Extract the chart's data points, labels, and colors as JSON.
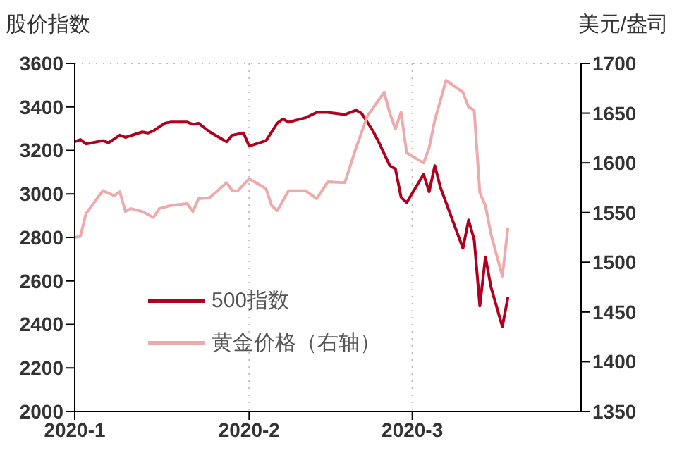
{
  "chart_data": {
    "type": "line",
    "ylabel": "股价指数",
    "y2label": "美元/盎司",
    "xlim": [
      "2020-01-01",
      "2020-03-31"
    ],
    "xticks": [
      {
        "value": "2020-01-01",
        "label": "2020-1"
      },
      {
        "value": "2020-02-01",
        "label": "2020-2"
      },
      {
        "value": "2020-03-01",
        "label": "2020-3"
      }
    ],
    "ylim": [
      2000,
      3600
    ],
    "yticks": [
      2000,
      2200,
      2400,
      2600,
      2800,
      3000,
      3200,
      3400,
      3600
    ],
    "y2lim": [
      1350,
      1700
    ],
    "y2ticks": [
      1350,
      1400,
      1450,
      1500,
      1550,
      1600,
      1650,
      1700
    ],
    "grid": true,
    "legend": "bottom left",
    "marker": "none",
    "line_style": "solid",
    "series": [
      {
        "name": "500指数",
        "color": "#b0001e",
        "x": [
          "2020-01-01",
          "2020-01-02",
          "2020-01-03",
          "2020-01-06",
          "2020-01-07",
          "2020-01-09",
          "2020-01-10",
          "2020-01-13",
          "2020-01-14",
          "2020-01-15",
          "2020-01-17",
          "2020-01-18",
          "2020-01-21",
          "2020-01-22",
          "2020-01-23",
          "2020-01-25",
          "2020-01-28",
          "2020-01-29",
          "2020-01-31",
          "2020-02-01",
          "2020-02-04",
          "2020-02-06",
          "2020-02-07",
          "2020-02-08",
          "2020-02-11",
          "2020-02-13",
          "2020-02-15",
          "2020-02-18",
          "2020-02-20",
          "2020-02-21",
          "2020-02-23",
          "2020-02-24",
          "2020-02-26",
          "2020-02-27",
          "2020-02-28",
          "2020-02-29",
          "2020-03-03",
          "2020-03-04",
          "2020-03-05",
          "2020-03-06",
          "2020-03-10",
          "2020-03-11",
          "2020-03-12",
          "2020-03-13",
          "2020-03-14",
          "2020-03-15",
          "2020-03-17",
          "2020-03-18"
        ],
        "values": [
          3240,
          3250,
          3230,
          3245,
          3235,
          3270,
          3260,
          3285,
          3280,
          3290,
          3325,
          3330,
          3330,
          3320,
          3325,
          3285,
          3240,
          3270,
          3280,
          3220,
          3245,
          3325,
          3345,
          3330,
          3350,
          3375,
          3375,
          3365,
          3385,
          3370,
          3290,
          3240,
          3130,
          3115,
          2985,
          2960,
          3090,
          3010,
          3130,
          3030,
          2750,
          2880,
          2790,
          2485,
          2710,
          2570,
          2390,
          2525
        ]
      },
      {
        "name": "黄金价格（右轴）",
        "color": "#eeaaaa",
        "axis": "y2",
        "x": [
          "2020-01-01",
          "2020-01-02",
          "2020-01-03",
          "2020-01-06",
          "2020-01-08",
          "2020-01-09",
          "2020-01-10",
          "2020-01-11",
          "2020-01-13",
          "2020-01-15",
          "2020-01-16",
          "2020-01-18",
          "2020-01-21",
          "2020-01-22",
          "2020-01-23",
          "2020-01-25",
          "2020-01-28",
          "2020-01-29",
          "2020-01-30",
          "2020-02-01",
          "2020-02-04",
          "2020-02-05",
          "2020-02-06",
          "2020-02-08",
          "2020-02-11",
          "2020-02-13",
          "2020-02-15",
          "2020-02-18",
          "2020-02-20",
          "2020-02-22",
          "2020-02-25",
          "2020-02-26",
          "2020-02-27",
          "2020-02-28",
          "2020-02-29",
          "2020-03-03",
          "2020-03-04",
          "2020-03-05",
          "2020-03-07",
          "2020-03-10",
          "2020-03-11",
          "2020-03-12",
          "2020-03-13",
          "2020-03-14",
          "2020-03-15",
          "2020-03-17",
          "2020-03-18"
        ],
        "values": [
          1525,
          1526,
          1549,
          1572,
          1567,
          1571,
          1551,
          1554,
          1551,
          1545,
          1554,
          1557,
          1559,
          1551,
          1564,
          1565,
          1580,
          1572,
          1572,
          1584,
          1574,
          1557,
          1552,
          1572,
          1572,
          1564,
          1581,
          1580,
          1615,
          1647,
          1671,
          1650,
          1634,
          1651,
          1610,
          1600,
          1615,
          1643,
          1683,
          1671,
          1656,
          1653,
          1570,
          1557,
          1528,
          1486,
          1535
        ]
      }
    ]
  }
}
